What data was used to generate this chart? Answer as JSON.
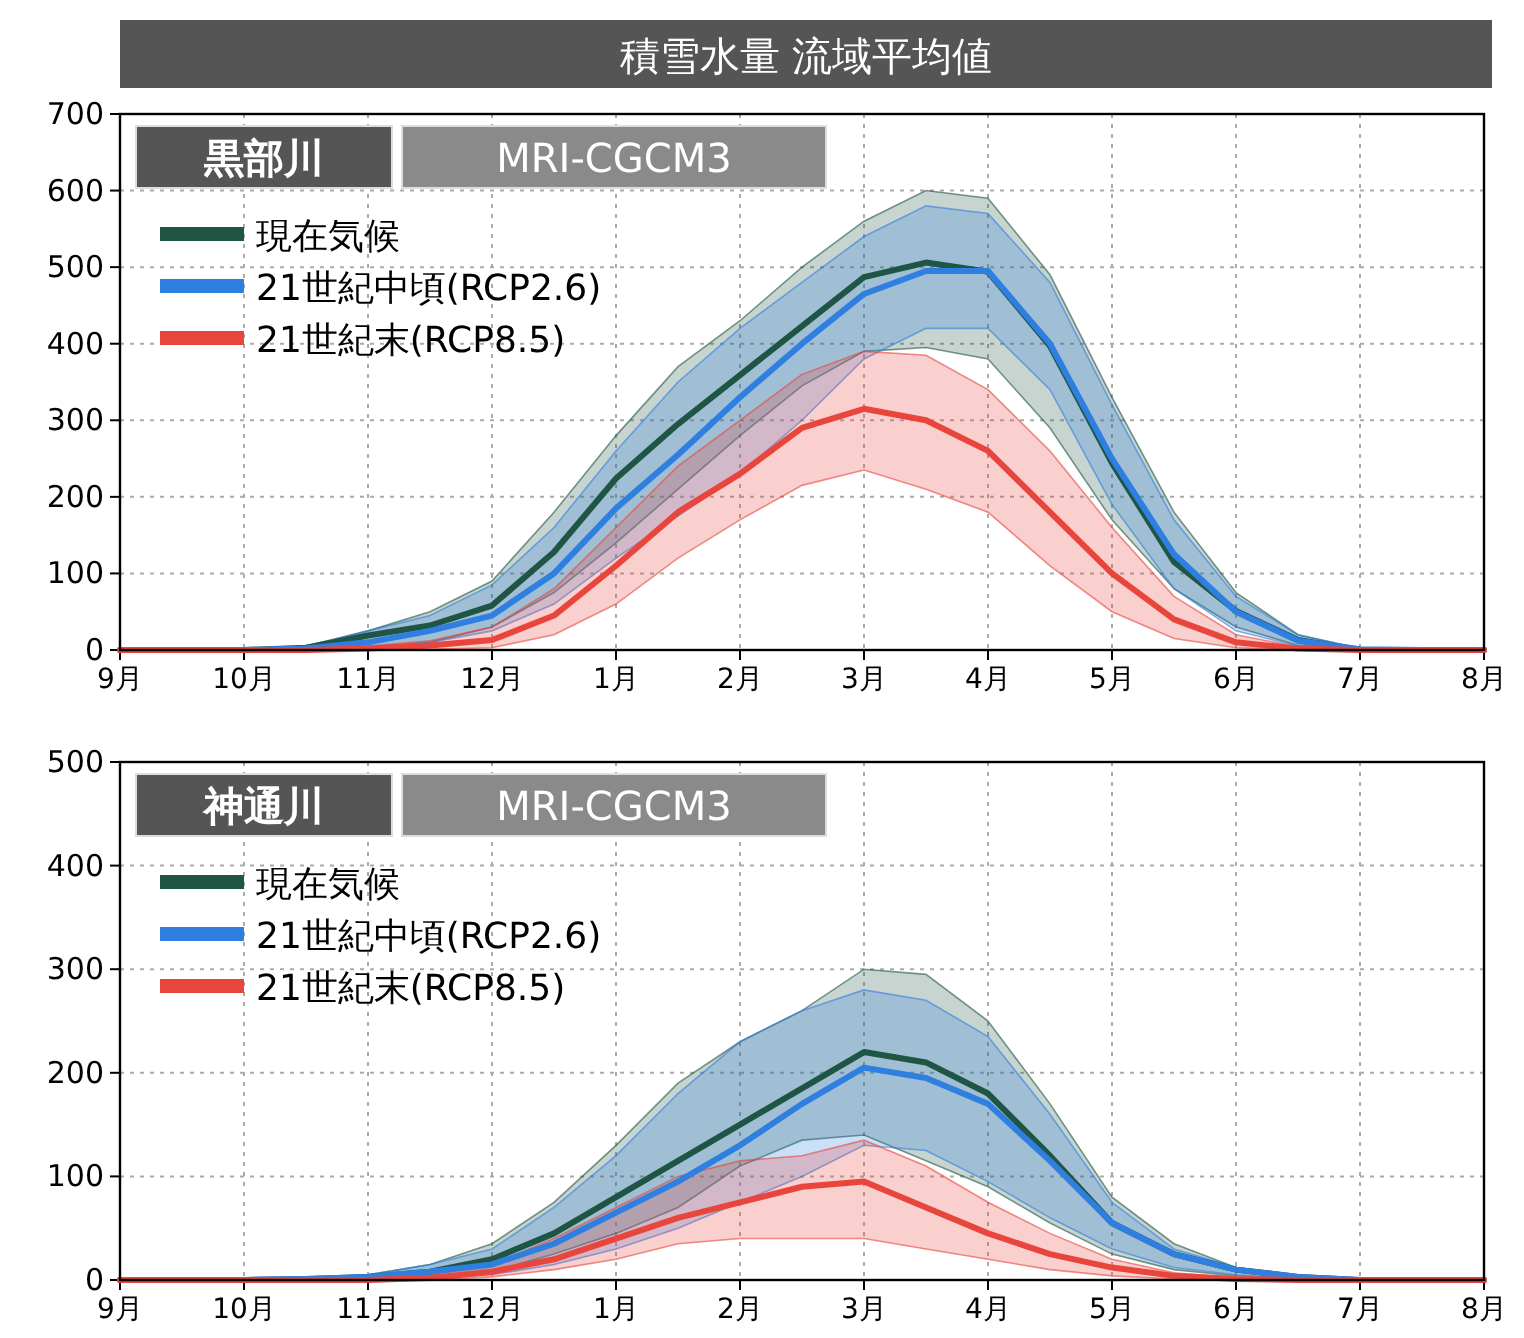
{
  "chart_data": [
    {
      "type": "line",
      "title": "積雪水量 流域平均値",
      "annotations": [
        "黒部川",
        "MRI-CGCM3"
      ],
      "categories": [
        "9月",
        null,
        "10月",
        null,
        "11月",
        null,
        "12月",
        null,
        "1月",
        null,
        "2月",
        null,
        "3月",
        null,
        "4月",
        null,
        "5月",
        null,
        "6月",
        null,
        "7月",
        null,
        "8月"
      ],
      "ylim": [
        0,
        700
      ],
      "yticks": [
        0,
        100,
        200,
        300,
        400,
        500,
        600,
        700
      ],
      "grid": true,
      "legend": "top left",
      "line_style": "solid",
      "marker": "none",
      "series": [
        {
          "name": "現在気候",
          "color": "#1f5545",
          "values": [
            0,
            0,
            0,
            3,
            19,
            32,
            58,
            128,
            224,
            295,
            359,
            423,
            487,
            506,
            494,
            397,
            244,
            115,
            51,
            13,
            0,
            0,
            0
          ],
          "lower": [
            0,
            0,
            0,
            0,
            3,
            10,
            30,
            75,
            140,
            210,
            280,
            345,
            390,
            395,
            380,
            290,
            170,
            80,
            30,
            6,
            0,
            0,
            0
          ],
          "upper": [
            0,
            0,
            0,
            5,
            25,
            50,
            90,
            180,
            280,
            370,
            430,
            500,
            560,
            600,
            590,
            490,
            330,
            180,
            75,
            20,
            2,
            0,
            0
          ]
        },
        {
          "name": "21世紀中頃(RCP2.6)",
          "color": "#2f7fe0",
          "values": [
            0,
            0,
            0,
            2,
            10,
            25,
            45,
            100,
            185,
            255,
            330,
            400,
            465,
            495,
            495,
            400,
            250,
            125,
            50,
            12,
            1,
            0,
            0
          ],
          "lower": [
            0,
            0,
            0,
            0,
            3,
            10,
            25,
            60,
            120,
            175,
            230,
            300,
            380,
            420,
            420,
            340,
            190,
            80,
            25,
            5,
            0,
            0,
            0
          ],
          "upper": [
            0,
            0,
            0,
            5,
            25,
            45,
            85,
            160,
            260,
            350,
            420,
            480,
            540,
            580,
            570,
            480,
            320,
            170,
            70,
            20,
            2,
            0,
            0
          ]
        },
        {
          "name": "21世紀末(RCP8.5)",
          "color": "#e8453c",
          "values": [
            0,
            0,
            0,
            0,
            2,
            6,
            13,
            45,
            110,
            180,
            230,
            290,
            315,
            300,
            260,
            180,
            100,
            40,
            10,
            2,
            0,
            0,
            0
          ],
          "lower": [
            0,
            0,
            0,
            0,
            0,
            1,
            3,
            20,
            60,
            120,
            170,
            215,
            235,
            210,
            180,
            110,
            50,
            15,
            3,
            0,
            0,
            0,
            0
          ],
          "upper": [
            0,
            0,
            0,
            1,
            5,
            12,
            30,
            80,
            160,
            240,
            300,
            360,
            390,
            385,
            340,
            260,
            160,
            70,
            20,
            4,
            0,
            0,
            0
          ]
        }
      ]
    },
    {
      "type": "line",
      "annotations": [
        "神通川",
        "MRI-CGCM3"
      ],
      "categories": [
        "9月",
        null,
        "10月",
        null,
        "11月",
        null,
        "12月",
        null,
        "1月",
        null,
        "2月",
        null,
        "3月",
        null,
        "4月",
        null,
        "5月",
        null,
        "6月",
        null,
        "7月",
        null,
        "8月"
      ],
      "ylim": [
        0,
        500
      ],
      "yticks": [
        0,
        100,
        200,
        300,
        400,
        500
      ],
      "grid": true,
      "legend": "top left",
      "line_style": "solid",
      "marker": "none",
      "series": [
        {
          "name": "現在気候",
          "color": "#1f5545",
          "values": [
            0,
            0,
            0,
            1,
            3,
            8,
            20,
            45,
            80,
            115,
            150,
            185,
            220,
            210,
            180,
            120,
            55,
            25,
            10,
            3,
            0,
            0,
            0
          ],
          "lower": [
            0,
            0,
            0,
            0,
            0,
            3,
            8,
            25,
            45,
            70,
            110,
            135,
            140,
            115,
            90,
            55,
            25,
            10,
            4,
            1,
            0,
            0,
            0
          ],
          "upper": [
            0,
            0,
            0,
            2,
            5,
            15,
            35,
            75,
            130,
            190,
            230,
            260,
            300,
            295,
            250,
            170,
            80,
            35,
            12,
            4,
            0,
            0,
            0
          ]
        },
        {
          "name": "21世紀中頃(RCP2.6)",
          "color": "#2f7fe0",
          "values": [
            0,
            0,
            0,
            1,
            3,
            8,
            15,
            35,
            65,
            95,
            130,
            170,
            205,
            195,
            170,
            115,
            55,
            25,
            10,
            3,
            0,
            0,
            0
          ],
          "lower": [
            0,
            0,
            0,
            0,
            0,
            2,
            5,
            15,
            30,
            50,
            75,
            100,
            130,
            125,
            95,
            60,
            30,
            12,
            5,
            1,
            0,
            0,
            0
          ],
          "upper": [
            0,
            0,
            0,
            2,
            5,
            15,
            30,
            70,
            120,
            180,
            230,
            260,
            280,
            270,
            235,
            160,
            75,
            30,
            12,
            4,
            0,
            0,
            0
          ]
        },
        {
          "name": "21世紀末(RCP8.5)",
          "color": "#e8453c",
          "values": [
            0,
            0,
            0,
            0,
            0,
            2,
            8,
            20,
            40,
            60,
            75,
            90,
            95,
            70,
            45,
            25,
            12,
            4,
            1,
            0,
            0,
            0,
            0
          ],
          "lower": [
            0,
            0,
            0,
            0,
            0,
            0,
            3,
            10,
            20,
            35,
            40,
            40,
            40,
            30,
            20,
            10,
            4,
            1,
            0,
            0,
            0,
            0,
            0
          ],
          "upper": [
            0,
            0,
            0,
            0,
            1,
            5,
            15,
            40,
            70,
            100,
            115,
            120,
            135,
            110,
            75,
            45,
            20,
            7,
            2,
            0,
            0,
            0,
            0
          ]
        }
      ]
    }
  ]
}
